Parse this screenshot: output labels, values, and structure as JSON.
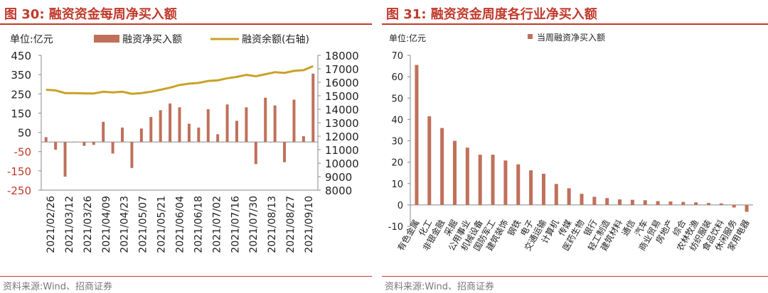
{
  "colors": {
    "accent": "#c0392b",
    "bar": "#c0705a",
    "line": "#c9a227",
    "axis": "#888888"
  },
  "panels": [
    {
      "title": "图 30:  融资资金每周净买入额",
      "source": "资料来源:Wind、招商证券"
    },
    {
      "title": "图 31:  融资资金周度各行业净买入额",
      "source": "资料来源:Wind、招商证券"
    }
  ],
  "chart_data": [
    {
      "type": "bar+line",
      "title": "融资资金每周净买入额",
      "unit_label": "单位:亿元",
      "legend": [
        "融资净买入额",
        "融资余额(右轴)"
      ],
      "legend_position": "top",
      "ylim": [
        -250,
        450
      ],
      "yticks": [
        450,
        350,
        250,
        150,
        50,
        -50,
        -150,
        -250
      ],
      "y2lim": [
        8000,
        18000
      ],
      "y2ticks": [
        18000,
        17000,
        16000,
        15000,
        14000,
        13000,
        12000,
        11000,
        10000,
        9000,
        8000
      ],
      "xtick_labels": [
        "2021/02/26",
        "2021/03/12",
        "2021/03/26",
        "2021/04/09",
        "2021/04/23",
        "2021/05/07",
        "2021/05/21",
        "2021/06/04",
        "2021/06/18",
        "2021/07/02",
        "2021/07/16",
        "2021/07/30",
        "2021/08/13",
        "2021/08/27",
        "2021/09/10"
      ],
      "bars": [
        25,
        -40,
        -180,
        0,
        -20,
        -15,
        105,
        -60,
        75,
        -135,
        70,
        130,
        165,
        200,
        180,
        95,
        75,
        170,
        40,
        195,
        110,
        180,
        -115,
        230,
        190,
        -105,
        220,
        30,
        355
      ],
      "line": [
        15450,
        15400,
        15200,
        15200,
        15180,
        15170,
        15300,
        15250,
        15300,
        15150,
        15200,
        15300,
        15450,
        15600,
        15800,
        15900,
        15950,
        16100,
        16150,
        16300,
        16400,
        16550,
        16450,
        16600,
        16750,
        16700,
        16850,
        16900,
        17200
      ]
    },
    {
      "type": "bar",
      "title": "融资资金周度各行业净买入额",
      "unit_label": "单位:亿元",
      "legend": [
        "当周融资净买入额"
      ],
      "legend_position": "top",
      "ylim": [
        -10,
        70
      ],
      "yticks": [
        70,
        60,
        50,
        40,
        30,
        20,
        10,
        0,
        -10
      ],
      "categories": [
        "有色金属",
        "化工",
        "非银金融",
        "采掘",
        "公用事业",
        "机械设备",
        "国防军工",
        "建筑装饰",
        "钢铁",
        "电子",
        "交通运输",
        "计算机",
        "传媒",
        "医药生物",
        "银行",
        "轻工制造",
        "建筑材料",
        "通信",
        "汽车",
        "商业贸易",
        "房地产",
        "综合",
        "农林牧渔",
        "纺织服装",
        "食品饮料",
        "休闲服务",
        "家用电器"
      ],
      "values": [
        65.5,
        41.5,
        36,
        30,
        26.8,
        23.5,
        23.5,
        20.8,
        19,
        16.2,
        14.6,
        9.8,
        7.8,
        5.2,
        3.8,
        3.2,
        2.6,
        2.4,
        2.2,
        1.8,
        1.6,
        1.4,
        1.2,
        0.9,
        0.7,
        -1.2,
        -3.2
      ]
    }
  ]
}
